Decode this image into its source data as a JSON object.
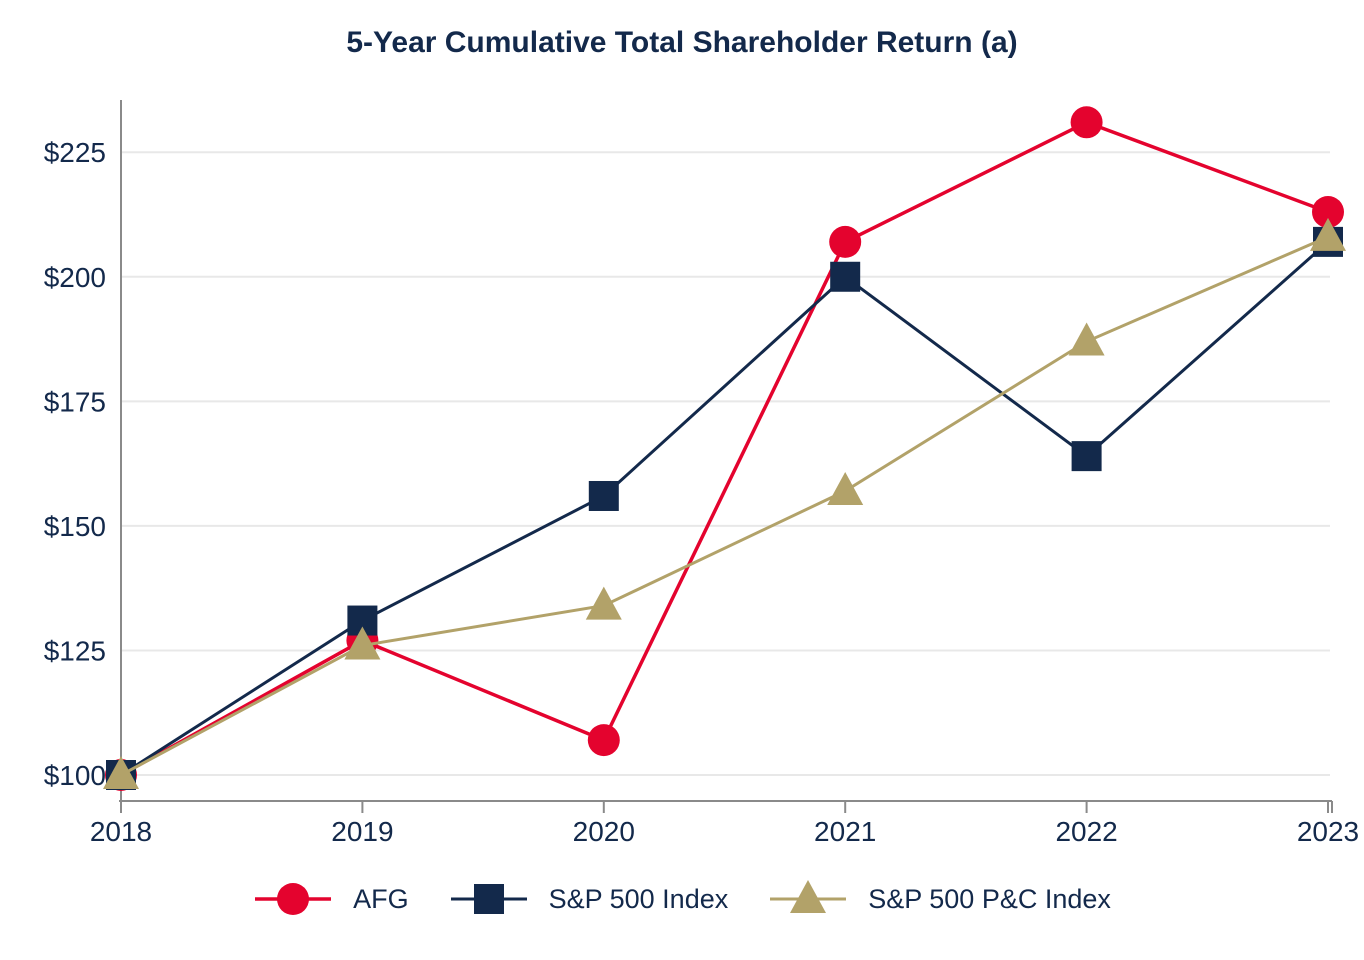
{
  "chart_data": {
    "type": "line",
    "title": "5-Year Cumulative Total Shareholder Return (a)",
    "xlabel": "",
    "ylabel": "",
    "categories": [
      "2018",
      "2019",
      "2020",
      "2021",
      "2022",
      "2023"
    ],
    "y_ticks": [
      100,
      125,
      150,
      175,
      200,
      225
    ],
    "y_tick_labels": [
      "$100",
      "$125",
      "$150",
      "$175",
      "$200",
      "$225"
    ],
    "ylim": [
      95,
      235
    ],
    "grid": "horizontal",
    "legend_position": "bottom",
    "series": [
      {
        "name": "AFG",
        "marker": "circle",
        "color": "#E4032E",
        "values": [
          100,
          127,
          107,
          207,
          231,
          213
        ]
      },
      {
        "name": "S&P 500 Index",
        "marker": "square",
        "color": "#13294B",
        "values": [
          100,
          131,
          156,
          200,
          164,
          207
        ]
      },
      {
        "name": "S&P 500 P&C Index",
        "marker": "triangle",
        "color": "#B2A269",
        "values": [
          100,
          126,
          134,
          157,
          187,
          208
        ]
      }
    ],
    "colors": {
      "title": "#13294B",
      "tick_labels": "#13294B",
      "axis": "#8A8A8A",
      "gridline": "#E8E8E8",
      "background": "#FFFFFF"
    }
  }
}
